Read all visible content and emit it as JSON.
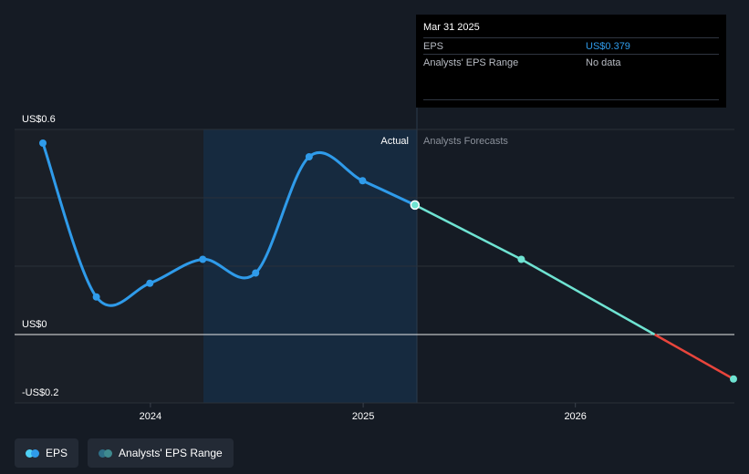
{
  "tooltip": {
    "date": "Mar 31 2025",
    "rows": [
      {
        "label": "EPS",
        "value": "US$0.379"
      },
      {
        "label": "Analysts' EPS Range",
        "value": "No data"
      }
    ]
  },
  "legend": {
    "eps_label": "EPS",
    "range_label": "Analysts' EPS Range"
  },
  "colors": {
    "background": "#151b24",
    "eps": "#2f9bea",
    "forecast": "#6fe3d2",
    "forecast_negative": "#e8453c",
    "shade_past": "#1a1f27",
    "shade_recent": "#162a3f"
  },
  "chart_data": {
    "type": "line",
    "section_labels": {
      "actual": "Actual",
      "forecast": "Analysts Forecasts"
    },
    "y_tick_labels": [
      "US$0.6",
      "US$0",
      "-US$0.2"
    ],
    "x_tick_labels": [
      "2024",
      "2025",
      "2026"
    ],
    "ylim": [
      -0.2,
      0.6
    ],
    "xlim": [
      "2023-06-15",
      "2026-09-30"
    ],
    "grid": true,
    "series": [
      {
        "name": "EPS",
        "kind": "actual",
        "points": [
          {
            "x": "2023-06-30",
            "y": 0.56
          },
          {
            "x": "2023-09-30",
            "y": 0.11
          },
          {
            "x": "2023-12-31",
            "y": 0.15
          },
          {
            "x": "2024-03-31",
            "y": 0.22
          },
          {
            "x": "2024-06-30",
            "y": 0.18
          },
          {
            "x": "2024-09-30",
            "y": 0.52
          },
          {
            "x": "2024-12-31",
            "y": 0.45
          },
          {
            "x": "2025-03-31",
            "y": 0.379
          }
        ]
      },
      {
        "name": "Analysts Forecasts",
        "kind": "forecast",
        "points": [
          {
            "x": "2025-03-31",
            "y": 0.379
          },
          {
            "x": "2025-09-30",
            "y": 0.22
          },
          {
            "x": "2026-09-30",
            "y": -0.13
          }
        ]
      }
    ]
  }
}
